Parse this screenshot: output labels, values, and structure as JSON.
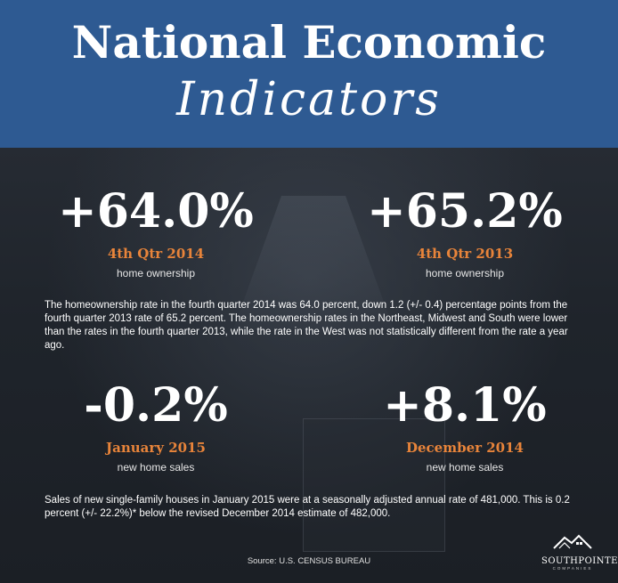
{
  "header": {
    "title_main": "National Economic",
    "title_script": "Indicators"
  },
  "stats": {
    "s1": {
      "value": "+64.0%",
      "period": "4th Qtr 2014",
      "label": "home ownership"
    },
    "s2": {
      "value": "+65.2%",
      "period": "4th Qtr 2013",
      "label": "home ownership"
    },
    "s3": {
      "value": "-0.2%",
      "period": "January 2015",
      "label": "new home sales"
    },
    "s4": {
      "value": "+8.1%",
      "period": "December 2014",
      "label": "new home sales"
    }
  },
  "paragraphs": {
    "p1": "The homeownership rate in the fourth quarter 2014 was 64.0 percent, down 1.2 (+/- 0.4) percentage points from the fourth quarter 2013 rate of 65.2 percent. The homeownership rates in the Northeast, Midwest and South were lower than the rates in the fourth quarter 2013, while the rate in the West was not statistically different from the rate a year ago.",
    "p2": "Sales of new single-family houses in January 2015 were at a seasonally adjusted annual rate of 481,000. This is 0.2 percent (+/- 22.2%)* below the revised December 2014 estimate of 482,000."
  },
  "footer": {
    "source": "Source: U.S. CENSUS BUREAU",
    "logo_name": "SOUTHPOINTE",
    "logo_sub": "COMPANIES"
  },
  "colors": {
    "header_blue": "#2e5a92",
    "accent_orange": "#e8843a",
    "background_dark": "#1d2229"
  }
}
